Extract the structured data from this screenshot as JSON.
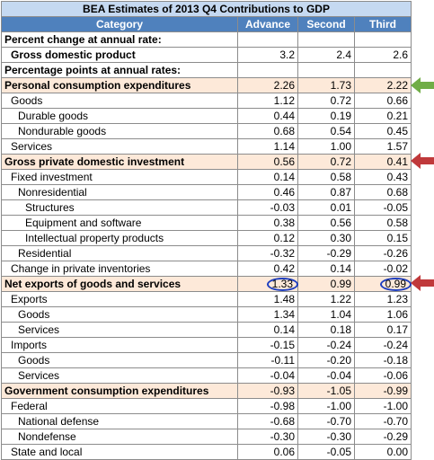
{
  "title": "BEA Estimates of 2013 Q4 Contributions to GDP",
  "headers": [
    "Category",
    "Advance",
    "Second",
    "Third"
  ],
  "rows": [
    {
      "label": "Percent change at annual rate:",
      "style": "section",
      "values": [
        "",
        "",
        ""
      ]
    },
    {
      "label": "Gross domestic product",
      "style": "bold2",
      "values": [
        "3.2",
        "2.4",
        "2.6"
      ]
    },
    {
      "label": "Percentage points at annual rates:",
      "style": "section",
      "values": [
        "",
        "",
        ""
      ]
    },
    {
      "label": "Personal consumption expenditures",
      "style": "highlight",
      "values": [
        "2.26",
        "1.73",
        "2.22"
      ]
    },
    {
      "label": "Goods",
      "style": "i1",
      "values": [
        "1.12",
        "0.72",
        "0.66"
      ]
    },
    {
      "label": "Durable goods",
      "style": "i2",
      "values": [
        "0.44",
        "0.19",
        "0.21"
      ]
    },
    {
      "label": "Nondurable goods",
      "style": "i2",
      "values": [
        "0.68",
        "0.54",
        "0.45"
      ]
    },
    {
      "label": "Services",
      "style": "i1",
      "values": [
        "1.14",
        "1.00",
        "1.57"
      ]
    },
    {
      "label": "Gross private domestic investment",
      "style": "highlight",
      "values": [
        "0.56",
        "0.72",
        "0.41"
      ]
    },
    {
      "label": "Fixed investment",
      "style": "i1",
      "values": [
        "0.14",
        "0.58",
        "0.43"
      ]
    },
    {
      "label": "Nonresidential",
      "style": "i2",
      "values": [
        "0.46",
        "0.87",
        "0.68"
      ]
    },
    {
      "label": "Structures",
      "style": "i3",
      "values": [
        "-0.03",
        "0.01",
        "-0.05"
      ]
    },
    {
      "label": "Equipment and software",
      "style": "i3",
      "values": [
        "0.38",
        "0.56",
        "0.58"
      ]
    },
    {
      "label": "Intellectual property products",
      "style": "i3",
      "values": [
        "0.12",
        "0.30",
        "0.15"
      ]
    },
    {
      "label": "Residential",
      "style": "i2",
      "values": [
        "-0.32",
        "-0.29",
        "-0.26"
      ]
    },
    {
      "label": "Change in private inventories",
      "style": "i1",
      "values": [
        "0.42",
        "0.14",
        "-0.02"
      ]
    },
    {
      "label": "Net exports of goods and services",
      "style": "highlight",
      "values": [
        "1.33",
        "0.99",
        "0.99"
      ],
      "circled": [
        0,
        2
      ]
    },
    {
      "label": "Exports",
      "style": "i1",
      "values": [
        "1.48",
        "1.22",
        "1.23"
      ]
    },
    {
      "label": "Goods",
      "style": "i2",
      "values": [
        "1.34",
        "1.04",
        "1.06"
      ]
    },
    {
      "label": "Services",
      "style": "i2",
      "values": [
        "0.14",
        "0.18",
        "0.17"
      ]
    },
    {
      "label": "Imports",
      "style": "i1",
      "values": [
        "-0.15",
        "-0.24",
        "-0.24"
      ]
    },
    {
      "label": "Goods",
      "style": "i2",
      "values": [
        "-0.11",
        "-0.20",
        "-0.18"
      ]
    },
    {
      "label": "Services",
      "style": "i2",
      "values": [
        "-0.04",
        "-0.04",
        "-0.06"
      ]
    },
    {
      "label": "Government consumption expenditures",
      "style": "highlight",
      "values": [
        "-0.93",
        "-1.05",
        "-0.99"
      ]
    },
    {
      "label": "Federal",
      "style": "i1",
      "values": [
        "-0.98",
        "-1.00",
        "-1.00"
      ]
    },
    {
      "label": "National defense",
      "style": "i2",
      "values": [
        "-0.68",
        "-0.70",
        "-0.70"
      ]
    },
    {
      "label": "Nondefense",
      "style": "i2",
      "values": [
        "-0.30",
        "-0.30",
        "-0.29"
      ]
    },
    {
      "label": "State and local",
      "style": "i1",
      "values": [
        "0.06",
        "-0.05",
        "0.00"
      ]
    }
  ],
  "colors": {
    "header": "#4f81bd",
    "title": "#c5d9f1",
    "highlight": "#fde9d9",
    "green_arrow": "#70ad47",
    "red_arrow": "#c0393b",
    "circle": "#1f3fbf"
  }
}
